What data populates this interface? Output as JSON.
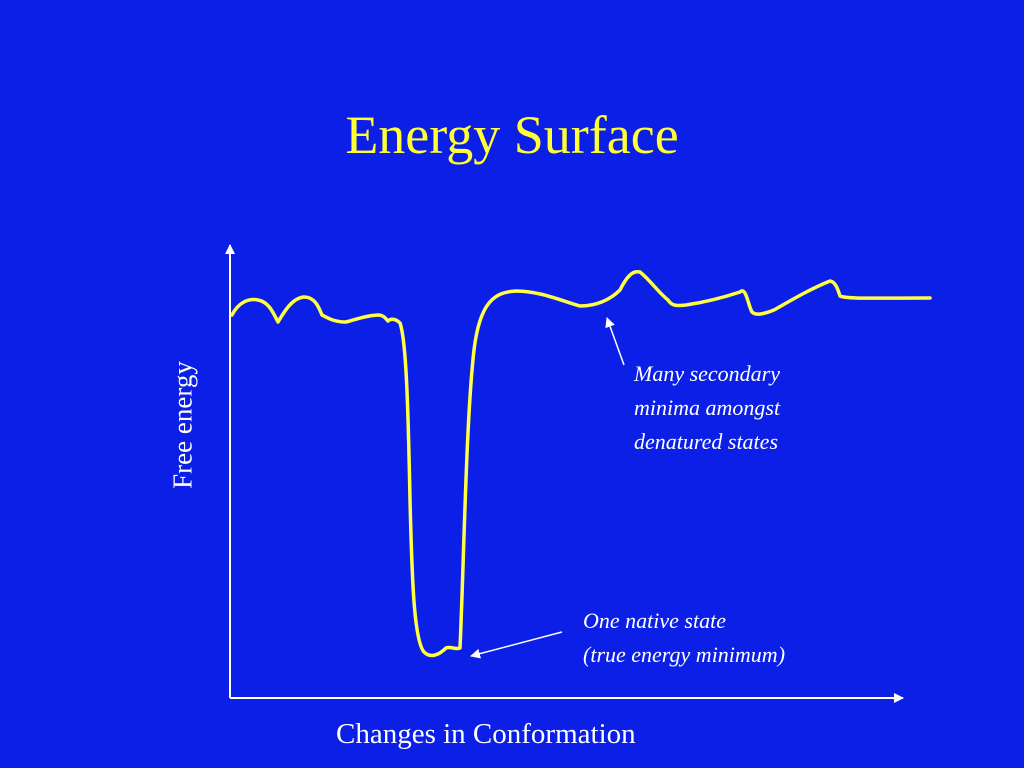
{
  "slide": {
    "title": "Energy Surface",
    "colors": {
      "background": "#0b1fe6",
      "title": "#ffff33",
      "curve": "#ffff44",
      "text": "#ffffff"
    }
  },
  "diagram": {
    "y_axis_label": "Free energy",
    "x_axis_label": "Changes in Conformation",
    "annotations": {
      "secondary": [
        "Many secondary",
        "minima amongst",
        "denatured states"
      ],
      "native": [
        "One native state",
        "(true energy minimum)"
      ]
    }
  }
}
